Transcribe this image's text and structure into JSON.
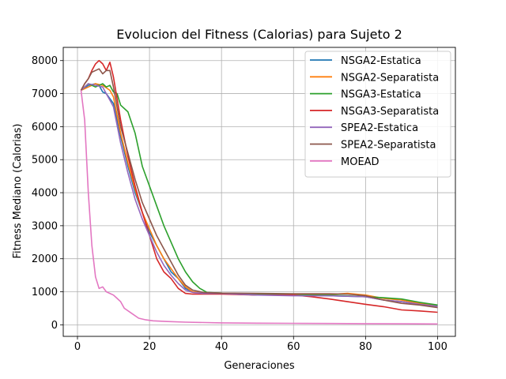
{
  "chart_data": {
    "type": "line",
    "title": "Evolucion del Fitness (Calorias) para Sujeto 2",
    "xlabel": "Generaciones",
    "ylabel": "Fitness Mediano (Calorias)",
    "xlim": [
      -3.95,
      104.95
    ],
    "ylim": [
      -350,
      8400
    ],
    "xticks": [
      0,
      20,
      40,
      60,
      80,
      100
    ],
    "yticks": [
      0,
      1000,
      2000,
      3000,
      4000,
      5000,
      6000,
      7000,
      8000
    ],
    "grid": true,
    "legend_position": "upper right",
    "series": [
      {
        "name": "NSGA2-Estatica",
        "color": "#1f77b4",
        "points": [
          [
            1,
            7100
          ],
          [
            3,
            7250
          ],
          [
            5,
            7300
          ],
          [
            6,
            7250
          ],
          [
            7,
            7050
          ],
          [
            8,
            7000
          ],
          [
            10,
            6700
          ],
          [
            12,
            5700
          ],
          [
            14,
            4800
          ],
          [
            16,
            4000
          ],
          [
            18,
            3400
          ],
          [
            20,
            2800
          ],
          [
            22,
            2400
          ],
          [
            24,
            2000
          ],
          [
            26,
            1600
          ],
          [
            28,
            1400
          ],
          [
            30,
            1100
          ],
          [
            32,
            1000
          ],
          [
            35,
            950
          ],
          [
            40,
            950
          ],
          [
            50,
            900
          ],
          [
            60,
            900
          ],
          [
            70,
            880
          ],
          [
            80,
            850
          ],
          [
            85,
            750
          ],
          [
            90,
            700
          ],
          [
            95,
            620
          ],
          [
            100,
            580
          ]
        ]
      },
      {
        "name": "NSGA2-Separatista",
        "color": "#ff7f0e",
        "points": [
          [
            1,
            7100
          ],
          [
            3,
            7200
          ],
          [
            5,
            7300
          ],
          [
            7,
            7250
          ],
          [
            9,
            7100
          ],
          [
            10,
            6900
          ],
          [
            12,
            5800
          ],
          [
            14,
            4900
          ],
          [
            16,
            4100
          ],
          [
            18,
            3400
          ],
          [
            20,
            2900
          ],
          [
            22,
            2400
          ],
          [
            24,
            2000
          ],
          [
            26,
            1700
          ],
          [
            28,
            1400
          ],
          [
            30,
            1150
          ],
          [
            32,
            1000
          ],
          [
            35,
            950
          ],
          [
            40,
            950
          ],
          [
            50,
            920
          ],
          [
            60,
            920
          ],
          [
            70,
            920
          ],
          [
            75,
            950
          ],
          [
            80,
            900
          ],
          [
            85,
            800
          ],
          [
            90,
            750
          ],
          [
            95,
            650
          ],
          [
            100,
            560
          ]
        ]
      },
      {
        "name": "NSGA3-Estatica",
        "color": "#2ca02c",
        "points": [
          [
            1,
            7100
          ],
          [
            3,
            7300
          ],
          [
            5,
            7200
          ],
          [
            7,
            7300
          ],
          [
            8,
            7200
          ],
          [
            9,
            7250
          ],
          [
            10,
            7050
          ],
          [
            11,
            7000
          ],
          [
            12,
            6650
          ],
          [
            14,
            6450
          ],
          [
            16,
            5800
          ],
          [
            18,
            4800
          ],
          [
            20,
            4200
          ],
          [
            22,
            3600
          ],
          [
            24,
            3000
          ],
          [
            26,
            2500
          ],
          [
            28,
            2000
          ],
          [
            30,
            1600
          ],
          [
            32,
            1300
          ],
          [
            34,
            1100
          ],
          [
            36,
            980
          ],
          [
            40,
            960
          ],
          [
            45,
            920
          ],
          [
            50,
            920
          ],
          [
            60,
            900
          ],
          [
            70,
            900
          ],
          [
            80,
            850
          ],
          [
            85,
            820
          ],
          [
            90,
            780
          ],
          [
            95,
            680
          ],
          [
            100,
            600
          ]
        ]
      },
      {
        "name": "NSGA3-Separatista",
        "color": "#d62728",
        "points": [
          [
            1,
            7100
          ],
          [
            2,
            7300
          ],
          [
            3,
            7450
          ],
          [
            4,
            7700
          ],
          [
            5,
            7900
          ],
          [
            6,
            8000
          ],
          [
            7,
            7900
          ],
          [
            8,
            7700
          ],
          [
            9,
            7950
          ],
          [
            10,
            7500
          ],
          [
            12,
            6200
          ],
          [
            14,
            5100
          ],
          [
            16,
            4200
          ],
          [
            18,
            3400
          ],
          [
            20,
            2700
          ],
          [
            22,
            2000
          ],
          [
            24,
            1600
          ],
          [
            26,
            1400
          ],
          [
            28,
            1100
          ],
          [
            30,
            950
          ],
          [
            32,
            930
          ],
          [
            40,
            930
          ],
          [
            50,
            900
          ],
          [
            60,
            900
          ],
          [
            65,
            850
          ],
          [
            70,
            780
          ],
          [
            75,
            700
          ],
          [
            80,
            620
          ],
          [
            85,
            550
          ],
          [
            90,
            450
          ],
          [
            95,
            420
          ],
          [
            100,
            380
          ]
        ]
      },
      {
        "name": "SPEA2-Estatica",
        "color": "#9467bd",
        "points": [
          [
            1,
            7100
          ],
          [
            3,
            7300
          ],
          [
            5,
            7250
          ],
          [
            7,
            7200
          ],
          [
            8,
            7000
          ],
          [
            9,
            6800
          ],
          [
            10,
            6600
          ],
          [
            12,
            5500
          ],
          [
            14,
            4600
          ],
          [
            16,
            3800
          ],
          [
            18,
            3200
          ],
          [
            20,
            2700
          ],
          [
            22,
            2200
          ],
          [
            24,
            1800
          ],
          [
            26,
            1500
          ],
          [
            28,
            1250
          ],
          [
            30,
            1050
          ],
          [
            32,
            980
          ],
          [
            35,
            950
          ],
          [
            40,
            950
          ],
          [
            50,
            900
          ],
          [
            60,
            880
          ],
          [
            70,
            880
          ],
          [
            80,
            850
          ],
          [
            85,
            750
          ],
          [
            90,
            700
          ],
          [
            95,
            620
          ],
          [
            100,
            560
          ]
        ]
      },
      {
        "name": "SPEA2-Separatista",
        "color": "#8c564b",
        "points": [
          [
            1,
            7100
          ],
          [
            2,
            7300
          ],
          [
            3,
            7450
          ],
          [
            4,
            7650
          ],
          [
            5,
            7700
          ],
          [
            6,
            7750
          ],
          [
            7,
            7600
          ],
          [
            8,
            7700
          ],
          [
            9,
            7700
          ],
          [
            10,
            7200
          ],
          [
            12,
            6000
          ],
          [
            14,
            5200
          ],
          [
            16,
            4400
          ],
          [
            18,
            3700
          ],
          [
            20,
            3200
          ],
          [
            22,
            2700
          ],
          [
            24,
            2300
          ],
          [
            26,
            1900
          ],
          [
            28,
            1500
          ],
          [
            30,
            1200
          ],
          [
            32,
            1050
          ],
          [
            35,
            980
          ],
          [
            40,
            960
          ],
          [
            50,
            950
          ],
          [
            60,
            940
          ],
          [
            70,
            940
          ],
          [
            75,
            930
          ],
          [
            80,
            880
          ],
          [
            85,
            750
          ],
          [
            90,
            650
          ],
          [
            95,
            600
          ],
          [
            100,
            520
          ]
        ]
      },
      {
        "name": "MOEAD",
        "color": "#e377c2",
        "points": [
          [
            1,
            7100
          ],
          [
            2,
            6200
          ],
          [
            3,
            4000
          ],
          [
            4,
            2400
          ],
          [
            5,
            1450
          ],
          [
            6,
            1100
          ],
          [
            7,
            1150
          ],
          [
            8,
            1000
          ],
          [
            9,
            950
          ],
          [
            10,
            900
          ],
          [
            11,
            800
          ],
          [
            12,
            700
          ],
          [
            13,
            500
          ],
          [
            15,
            350
          ],
          [
            17,
            200
          ],
          [
            19,
            150
          ],
          [
            21,
            120
          ],
          [
            25,
            100
          ],
          [
            30,
            80
          ],
          [
            40,
            60
          ],
          [
            50,
            50
          ],
          [
            60,
            45
          ],
          [
            70,
            40
          ],
          [
            80,
            35
          ],
          [
            90,
            30
          ],
          [
            100,
            25
          ]
        ]
      }
    ]
  }
}
